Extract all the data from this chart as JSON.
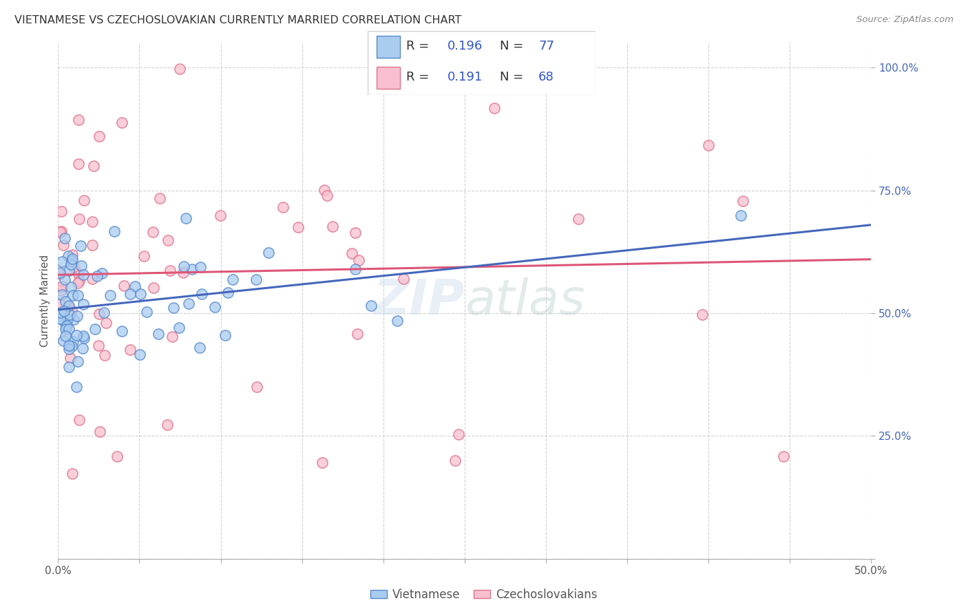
{
  "title": "VIETNAMESE VS CZECHOSLOVAKIAN CURRENTLY MARRIED CORRELATION CHART",
  "source": "Source: ZipAtlas.com",
  "ylabel": "Currently Married",
  "x_min": 0.0,
  "x_max": 0.5,
  "y_min": 0.0,
  "y_max": 1.05,
  "x_tick_positions": [
    0.0,
    0.05,
    0.1,
    0.15,
    0.2,
    0.25,
    0.3,
    0.35,
    0.4,
    0.45,
    0.5
  ],
  "x_tick_labels": [
    "0.0%",
    "",
    "",
    "",
    "",
    "",
    "",
    "",
    "",
    "",
    "50.0%"
  ],
  "y_tick_positions": [
    0.0,
    0.25,
    0.5,
    0.75,
    1.0
  ],
  "y_tick_labels": [
    "",
    "25.0%",
    "50.0%",
    "75.0%",
    "100.0%"
  ],
  "vietnamese_fill_color": "#aaccf0",
  "vietnamese_edge_color": "#5588cc",
  "czechoslovakian_fill_color": "#f8c0ce",
  "czechoslovakian_edge_color": "#e0708a",
  "vietnamese_line_color": "#4466bb",
  "czechoslovakian_line_color": "#dd5577",
  "R_vietnamese": 0.196,
  "N_vietnamese": 77,
  "R_czechoslovakian": 0.191,
  "N_czechoslovakian": 68,
  "legend_text_color": "#333333",
  "legend_value_color": "#3355cc",
  "watermark": "ZIPatlas",
  "background_color": "#ffffff",
  "grid_color": "#cccccc",
  "title_color": "#333333",
  "source_color": "#888888",
  "axis_label_color": "#555555",
  "tick_value_color": "#4466bb"
}
